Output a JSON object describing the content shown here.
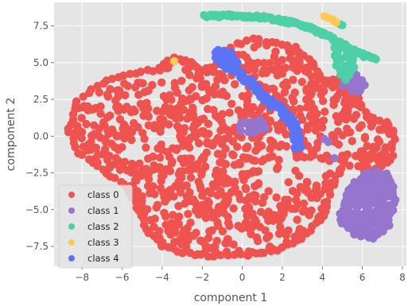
{
  "chart_data": {
    "type": "scatter",
    "title": "",
    "xlabel": "component 1",
    "ylabel": "component 2",
    "xlim": [
      -9.4,
      8.2
    ],
    "ylim": [
      -8.85,
      9.1
    ],
    "xticks": [
      -8,
      -6,
      -4,
      -2,
      0,
      2,
      4,
      6,
      8
    ],
    "yticks": [
      -7.5,
      -5.0,
      -2.5,
      0.0,
      2.5,
      5.0,
      7.5
    ],
    "xtick_labels": [
      "−8",
      "−6",
      "−4",
      "−2",
      "0",
      "2",
      "4",
      "6",
      "8"
    ],
    "ytick_labels": [
      "−7.5",
      "−5.0",
      "−2.5",
      "0.0",
      "2.5",
      "5.0",
      "7.5"
    ],
    "grid": true,
    "legend_position": "lower-left",
    "series": [
      {
        "name": "class 0",
        "color": "#ef5350",
        "regions": [
          {
            "shape": "blob",
            "outline": [
              [
                -8.7,
                0.5
              ],
              [
                -8.2,
                2.4
              ],
              [
                -7.0,
                3.6
              ],
              [
                -5.6,
                4.2
              ],
              [
                -4.4,
                4.5
              ],
              [
                -3.4,
                5.3
              ],
              [
                -2.6,
                5.1
              ],
              [
                -2.0,
                4.4
              ],
              [
                -1.3,
                4.9
              ],
              [
                -0.5,
                6.1
              ],
              [
                0.5,
                6.6
              ],
              [
                1.5,
                6.4
              ],
              [
                2.6,
                6.0
              ],
              [
                3.5,
                5.0
              ],
              [
                3.9,
                4.1
              ],
              [
                3.6,
                3.2
              ],
              [
                4.4,
                3.6
              ],
              [
                5.1,
                3.9
              ],
              [
                5.6,
                3.1
              ],
              [
                5.9,
                2.2
              ],
              [
                6.3,
                1.3
              ],
              [
                7.2,
                1.0
              ],
              [
                7.6,
                0.1
              ],
              [
                7.4,
                -1.6
              ],
              [
                6.8,
                -2.4
              ],
              [
                6.1,
                -2.3
              ],
              [
                5.1,
                -1.8
              ],
              [
                4.5,
                -3.4
              ],
              [
                4.0,
                -5.4
              ],
              [
                3.0,
                -6.9
              ],
              [
                1.7,
                -7.8
              ],
              [
                0.3,
                -8.1
              ],
              [
                -1.4,
                -8.2
              ],
              [
                -2.9,
                -7.9
              ],
              [
                -4.0,
                -7.5
              ],
              [
                -4.8,
                -6.3
              ],
              [
                -5.2,
                -4.8
              ],
              [
                -5.9,
                -3.3
              ],
              [
                -7.2,
                -2.1
              ],
              [
                -8.2,
                -1.1
              ]
            ],
            "n": 950
          },
          {
            "shape": "blob",
            "outline": [
              [
                4.1,
                3.8
              ],
              [
                4.8,
                3.9
              ],
              [
                5.3,
                3.6
              ],
              [
                4.8,
                3.4
              ],
              [
                4.2,
                3.5
              ]
            ],
            "n": 8
          }
        ]
      },
      {
        "name": "class 1",
        "color": "#9575cd",
        "regions": [
          {
            "shape": "blob",
            "outline": [
              [
                5.0,
                -5.0
              ],
              [
                5.4,
                -3.4
              ],
              [
                6.1,
                -2.6
              ],
              [
                6.7,
                -2.3
              ],
              [
                7.2,
                -2.6
              ],
              [
                7.5,
                -3.4
              ],
              [
                7.6,
                -4.6
              ],
              [
                7.3,
                -6.0
              ],
              [
                6.6,
                -6.9
              ],
              [
                5.9,
                -6.8
              ],
              [
                5.2,
                -6.2
              ],
              [
                4.9,
                -5.6
              ]
            ],
            "n": 220
          },
          {
            "shape": "blob",
            "outline": [
              [
                5.2,
                4.0
              ],
              [
                5.7,
                4.1
              ],
              [
                6.1,
                3.5
              ],
              [
                5.9,
                3.1
              ],
              [
                5.4,
                3.1
              ],
              [
                5.1,
                3.4
              ]
            ],
            "n": 18
          },
          {
            "shape": "blob",
            "outline": [
              [
                0.0,
                0.9
              ],
              [
                0.8,
                1.1
              ],
              [
                1.2,
                0.6
              ],
              [
                0.6,
                0.2
              ],
              [
                -0.1,
                0.4
              ]
            ],
            "n": 10
          },
          {
            "shape": "points",
            "points": [
              [
                4.1,
                -0.2
              ],
              [
                4.3,
                -0.4
              ],
              [
                4.6,
                -1.5
              ]
            ]
          }
        ]
      },
      {
        "name": "class 2",
        "color": "#4dd0a8",
        "regions": [
          {
            "shape": "curve",
            "points": [
              [
                -1.9,
                8.15
              ],
              [
                -0.5,
                8.2
              ],
              [
                1.0,
                8.1
              ],
              [
                2.6,
                7.7
              ],
              [
                3.7,
                7.2
              ],
              [
                4.6,
                6.6
              ],
              [
                5.4,
                5.9
              ],
              [
                6.1,
                5.5
              ],
              [
                6.6,
                5.3
              ]
            ],
            "n": 140,
            "spread": 0.1
          },
          {
            "shape": "blob",
            "outline": [
              [
                4.9,
                6.3
              ],
              [
                5.5,
                5.6
              ],
              [
                5.6,
                4.6
              ],
              [
                5.2,
                3.9
              ],
              [
                4.9,
                4.2
              ],
              [
                4.7,
                5.2
              ],
              [
                4.6,
                6.0
              ]
            ],
            "n": 30
          },
          {
            "shape": "points",
            "points": [
              [
                4.9,
                7.6
              ],
              [
                5.0,
                7.55
              ]
            ]
          }
        ]
      },
      {
        "name": "class 3",
        "color": "#ffca4f",
        "regions": [
          {
            "shape": "points",
            "points": [
              [
                4.1,
                8.15
              ],
              [
                4.3,
                8.05
              ],
              [
                4.5,
                7.95
              ],
              [
                4.6,
                7.8
              ],
              [
                4.7,
                7.75
              ],
              [
                -3.4,
                5.1
              ]
            ]
          }
        ]
      },
      {
        "name": "class 4",
        "color": "#5b74f5",
        "regions": [
          {
            "shape": "curve",
            "points": [
              [
                -1.2,
                5.7
              ],
              [
                -0.5,
                4.7
              ],
              [
                0.4,
                3.6
              ],
              [
                1.2,
                2.5
              ],
              [
                1.8,
                1.9
              ],
              [
                2.4,
                1.2
              ],
              [
                2.7,
                0.0
              ],
              [
                2.8,
                -0.8
              ]
            ],
            "n": 160,
            "spread": 0.17
          },
          {
            "shape": "blob",
            "outline": [
              [
                -1.2,
                5.9
              ],
              [
                -0.6,
                5.7
              ],
              [
                -0.3,
                5.0
              ],
              [
                -0.8,
                4.6
              ],
              [
                -1.3,
                5.1
              ]
            ],
            "n": 18
          }
        ]
      }
    ]
  }
}
